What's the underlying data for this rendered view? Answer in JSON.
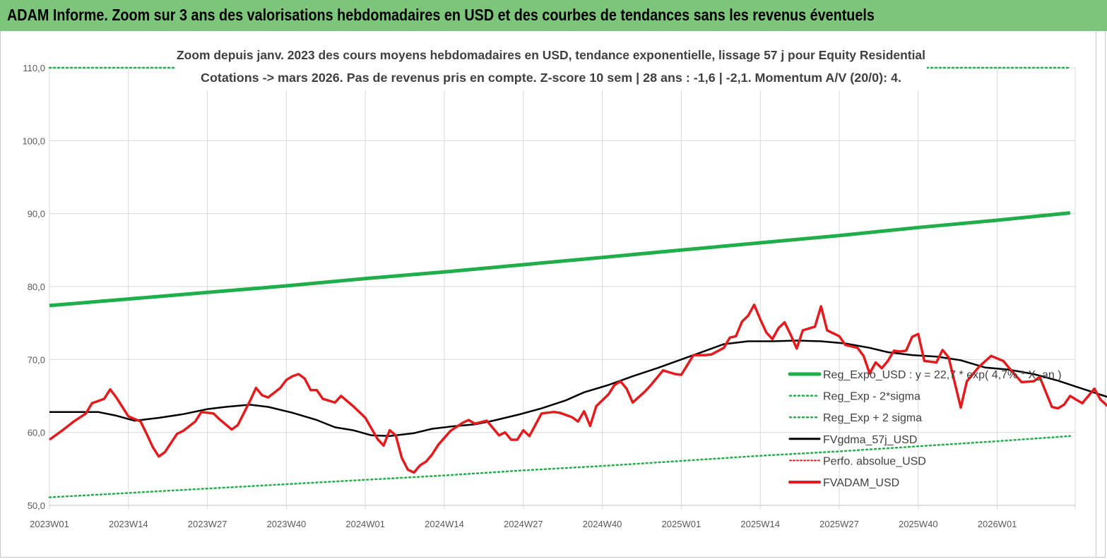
{
  "header": {
    "title": "ADAM Informe. Zoom sur 3 ans des valorisations hebdomadaires en USD et des courbes de tendances sans les revenus éventuels"
  },
  "colors": {
    "banner": "#7dc57a",
    "trend": "#1fae4a",
    "sigma": "#1fae4a",
    "fv_smooth": "#000000",
    "fvadam": "#e41a1c"
  },
  "chart_data": {
    "type": "line",
    "subtitle_line1": "Zoom depuis janv. 2023 des cours moyens hebdomadaires en USD, tendance exponentielle, lissage 57 j pour Equity Residential",
    "subtitle_line2": "Cotations -> mars 2026. Pas de revenus pris en  compte. Z-score 10 sem  | 28 ans : -1,6 | -2,1. Momentum A/V (20/0): 4.",
    "ylim": [
      50,
      110
    ],
    "y_ticks": [
      "50,0",
      "60,0",
      "70,0",
      "80,0",
      "90,0",
      "100,0",
      "110,0"
    ],
    "x_ticks": [
      "2023W01",
      "2023W14",
      "2023W27",
      "2023W40",
      "2024W01",
      "2024W14",
      "2024W27",
      "2024W40",
      "2025W01",
      "2025W14",
      "2025W27",
      "2025W40",
      "2026W01"
    ],
    "grid": true,
    "legend_position": "right",
    "legend": [
      "Reg_Expo_USD : y = 22,7 * exp( 4,7% *  X_an )",
      "Reg_Exp - 2*sigma",
      "Reg_Exp + 2 sigma",
      "FVgdma_57j_USD",
      "Perfo. absolue_USD",
      "FVADAM_USD"
    ],
    "series": [
      {
        "name": "Reg_Expo_USD : y = 22,7 * exp( 4,7% *  X_an )",
        "style": "thick-solid",
        "points": [
          [
            0,
            77.4
          ],
          [
            13,
            78.3
          ],
          [
            26,
            79.2
          ],
          [
            39,
            80.1
          ],
          [
            52,
            81.1
          ],
          [
            65,
            82.0
          ],
          [
            78,
            83.0
          ],
          [
            91,
            84.0
          ],
          [
            104,
            85.0
          ],
          [
            117,
            86.0
          ],
          [
            130,
            87.0
          ],
          [
            143,
            88.1
          ],
          [
            156,
            89.1
          ],
          [
            168,
            90.1
          ]
        ]
      },
      {
        "name": "Reg_Exp - 2*sigma",
        "style": "dotted",
        "points": [
          [
            0,
            51.1
          ],
          [
            13,
            51.7
          ],
          [
            26,
            52.3
          ],
          [
            39,
            52.9
          ],
          [
            52,
            53.5
          ],
          [
            65,
            54.1
          ],
          [
            78,
            54.8
          ],
          [
            91,
            55.4
          ],
          [
            104,
            56.1
          ],
          [
            117,
            56.8
          ],
          [
            130,
            57.4
          ],
          [
            143,
            58.1
          ],
          [
            156,
            58.8
          ],
          [
            168,
            59.5
          ]
        ]
      },
      {
        "name": "Reg_Exp + 2 sigma",
        "style": "dotted",
        "points": [
          [
            0,
            110.0
          ],
          [
            168,
            110.0
          ]
        ]
      },
      {
        "name": "FVgdma_57j_USD",
        "style": "solid",
        "points": [
          [
            0,
            62.8
          ],
          [
            4,
            62.8
          ],
          [
            8,
            62.8
          ],
          [
            11,
            62.3
          ],
          [
            14,
            61.6
          ],
          [
            18,
            62.0
          ],
          [
            22,
            62.5
          ],
          [
            26,
            63.2
          ],
          [
            29,
            63.5
          ],
          [
            33,
            63.8
          ],
          [
            36,
            63.5
          ],
          [
            40,
            62.7
          ],
          [
            44,
            61.7
          ],
          [
            47,
            60.7
          ],
          [
            50,
            60.3
          ],
          [
            53,
            59.6
          ],
          [
            56,
            59.5
          ],
          [
            60,
            59.9
          ],
          [
            63,
            60.5
          ],
          [
            66,
            60.8
          ],
          [
            70,
            61.1
          ],
          [
            73,
            61.6
          ],
          [
            77,
            62.4
          ],
          [
            81,
            63.3
          ],
          [
            85,
            64.4
          ],
          [
            88,
            65.5
          ],
          [
            92,
            66.5
          ],
          [
            96,
            67.7
          ],
          [
            100,
            68.8
          ],
          [
            104,
            70.0
          ],
          [
            108,
            71.2
          ],
          [
            111,
            72.1
          ],
          [
            115,
            72.5
          ],
          [
            119,
            72.5
          ],
          [
            123,
            72.6
          ],
          [
            127,
            72.5
          ],
          [
            131,
            72.2
          ],
          [
            135,
            71.6
          ],
          [
            138,
            71.0
          ],
          [
            142,
            70.6
          ],
          [
            146,
            70.4
          ],
          [
            150,
            69.9
          ],
          [
            154,
            68.9
          ],
          [
            158,
            68.6
          ],
          [
            162,
            68.0
          ],
          [
            166,
            67.1
          ],
          [
            170,
            66.0
          ],
          [
            174,
            64.9
          ],
          [
            178,
            64.0
          ],
          [
            182,
            63.0
          ],
          [
            186,
            62.0
          ],
          [
            190,
            61.6
          ],
          [
            194,
            61.5
          ],
          [
            198,
            61.5
          ],
          [
            202,
            61.5
          ],
          [
            206,
            61.3
          ],
          [
            210,
            60.9
          ],
          [
            214,
            60.2
          ]
        ]
      },
      {
        "name": "FVADAM_USD",
        "style": "thick-solid",
        "points": [
          [
            0,
            59.0
          ],
          [
            2,
            60.2
          ],
          [
            4,
            61.5
          ],
          [
            6,
            62.6
          ],
          [
            7,
            64.0
          ],
          [
            9,
            64.6
          ],
          [
            10,
            65.9
          ],
          [
            11,
            64.8
          ],
          [
            12,
            63.5
          ],
          [
            13,
            62.2
          ],
          [
            15,
            61.5
          ],
          [
            16,
            59.8
          ],
          [
            17,
            58.0
          ],
          [
            18,
            56.7
          ],
          [
            19,
            57.3
          ],
          [
            21,
            59.8
          ],
          [
            22,
            60.2
          ],
          [
            24,
            61.5
          ],
          [
            25,
            62.8
          ],
          [
            27,
            62.6
          ],
          [
            28,
            61.8
          ],
          [
            29,
            61.1
          ],
          [
            30,
            60.4
          ],
          [
            31,
            61.0
          ],
          [
            33,
            64.3
          ],
          [
            34,
            66.1
          ],
          [
            35,
            65.1
          ],
          [
            36,
            64.8
          ],
          [
            38,
            66.1
          ],
          [
            39,
            67.2
          ],
          [
            40,
            67.7
          ],
          [
            41,
            68.0
          ],
          [
            42,
            67.4
          ],
          [
            43,
            65.8
          ],
          [
            44,
            65.8
          ],
          [
            45,
            64.6
          ],
          [
            47,
            64.1
          ],
          [
            48,
            65.0
          ],
          [
            50,
            63.6
          ],
          [
            51,
            62.8
          ],
          [
            52,
            62.0
          ],
          [
            54,
            59.1
          ],
          [
            55,
            58.2
          ],
          [
            56,
            60.3
          ],
          [
            57,
            59.6
          ],
          [
            58,
            56.5
          ],
          [
            59,
            54.9
          ],
          [
            60,
            54.5
          ],
          [
            61,
            55.5
          ],
          [
            62,
            56.0
          ],
          [
            63,
            57.0
          ],
          [
            64,
            58.3
          ],
          [
            66,
            60.2
          ],
          [
            68,
            61.3
          ],
          [
            69,
            61.7
          ],
          [
            70,
            61.2
          ],
          [
            72,
            61.6
          ],
          [
            73,
            60.6
          ],
          [
            74,
            59.6
          ],
          [
            75,
            60.0
          ],
          [
            76,
            59.0
          ],
          [
            77,
            59.0
          ],
          [
            78,
            60.3
          ],
          [
            79,
            59.5
          ],
          [
            81,
            62.6
          ],
          [
            83,
            62.8
          ],
          [
            84,
            62.7
          ],
          [
            86,
            62.1
          ],
          [
            87,
            61.5
          ],
          [
            88,
            62.9
          ],
          [
            89,
            60.9
          ],
          [
            90,
            63.6
          ],
          [
            92,
            65.2
          ],
          [
            93,
            66.5
          ],
          [
            94,
            67.0
          ],
          [
            95,
            66.0
          ],
          [
            96,
            64.1
          ],
          [
            98,
            65.6
          ],
          [
            99,
            66.5
          ],
          [
            101,
            68.5
          ],
          [
            103,
            68.0
          ],
          [
            104,
            67.9
          ],
          [
            106,
            70.6
          ],
          [
            108,
            70.6
          ],
          [
            109,
            70.7
          ],
          [
            111,
            71.6
          ],
          [
            112,
            73.0
          ],
          [
            113,
            73.2
          ],
          [
            114,
            75.2
          ],
          [
            115,
            76.0
          ],
          [
            116,
            77.5
          ],
          [
            117,
            75.5
          ],
          [
            118,
            73.7
          ],
          [
            119,
            72.8
          ],
          [
            120,
            74.3
          ],
          [
            121,
            75.1
          ],
          [
            122,
            73.4
          ],
          [
            123,
            71.5
          ],
          [
            124,
            74.0
          ],
          [
            126,
            74.5
          ],
          [
            127,
            77.3
          ],
          [
            128,
            74.0
          ],
          [
            130,
            73.2
          ],
          [
            131,
            72.0
          ],
          [
            133,
            71.6
          ],
          [
            134,
            70.5
          ],
          [
            135,
            68.1
          ],
          [
            136,
            69.6
          ],
          [
            137,
            68.8
          ],
          [
            138,
            69.8
          ],
          [
            139,
            71.2
          ],
          [
            140,
            71.1
          ],
          [
            141,
            71.2
          ],
          [
            142,
            73.1
          ],
          [
            143,
            73.5
          ],
          [
            144,
            69.8
          ],
          [
            146,
            69.6
          ],
          [
            147,
            71.3
          ],
          [
            148,
            70.3
          ],
          [
            150,
            63.4
          ],
          [
            151,
            67.0
          ],
          [
            153,
            69.0
          ],
          [
            155,
            70.5
          ],
          [
            157,
            69.8
          ],
          [
            158,
            68.8
          ],
          [
            160,
            66.9
          ],
          [
            162,
            67.0
          ],
          [
            163,
            67.6
          ],
          [
            165,
            63.5
          ],
          [
            166,
            63.3
          ],
          [
            167,
            63.8
          ],
          [
            168,
            65.0
          ],
          [
            169,
            64.5
          ],
          [
            170,
            64.0
          ],
          [
            172,
            66.0
          ],
          [
            173,
            64.5
          ],
          [
            175,
            63.0
          ],
          [
            176,
            62.1
          ],
          [
            177,
            62.0
          ],
          [
            178,
            63.2
          ],
          [
            179,
            61.6
          ],
          [
            180,
            60.2
          ],
          [
            181,
            59.3
          ],
          [
            183,
            59.5
          ],
          [
            184,
            59.4
          ],
          [
            185,
            61.2
          ],
          [
            187,
            61.0
          ],
          [
            188,
            60.1
          ],
          [
            189,
            60.3
          ],
          [
            190,
            61.2
          ],
          [
            191,
            61.8
          ],
          [
            192,
            62.4
          ],
          [
            193,
            61.9
          ],
          [
            194,
            61.0
          ],
          [
            195,
            60.8
          ],
          [
            196,
            61.2
          ],
          [
            197,
            61.6
          ],
          [
            198,
            62.4
          ],
          [
            199,
            62.3
          ],
          [
            200,
            64.3
          ],
          [
            201,
            63.6
          ],
          [
            202,
            63.5
          ],
          [
            203,
            62.6
          ],
          [
            204,
            61.1
          ],
          [
            205,
            60.4
          ],
          [
            206,
            59.4
          ],
          [
            207,
            58.8
          ]
        ]
      }
    ]
  }
}
